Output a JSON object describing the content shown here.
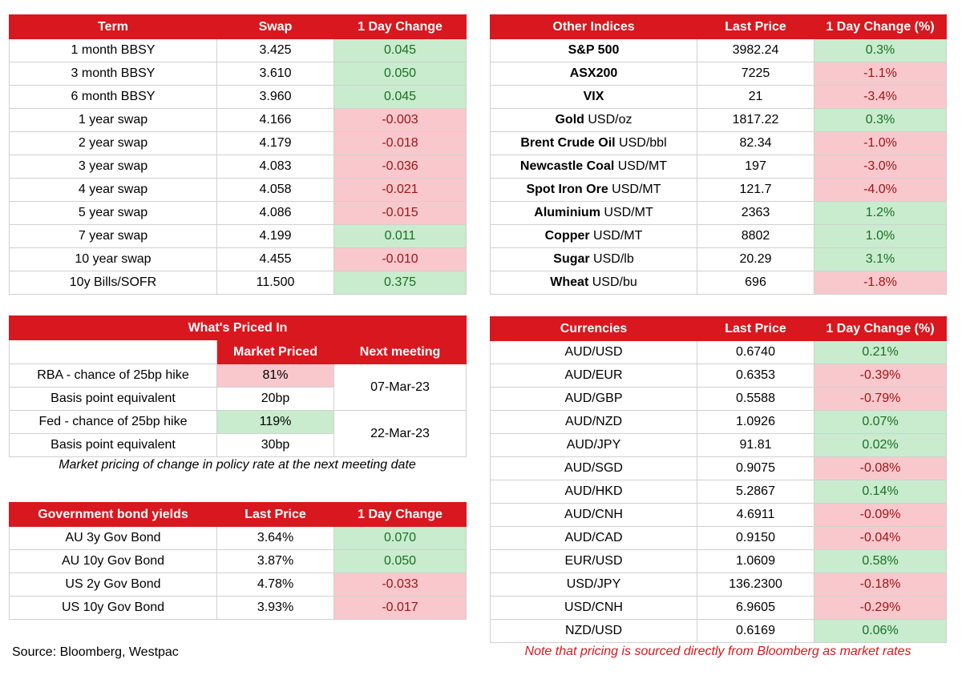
{
  "swaps": {
    "headers": [
      "Term",
      "Swap",
      "1 Day Change"
    ],
    "rows": [
      {
        "term": "1 month BBSY",
        "swap": "3.425",
        "change": "0.045",
        "dir": "pos"
      },
      {
        "term": "3 month BBSY",
        "swap": "3.610",
        "change": "0.050",
        "dir": "pos"
      },
      {
        "term": "6 month BBSY",
        "swap": "3.960",
        "change": "0.045",
        "dir": "pos"
      },
      {
        "term": "1 year swap",
        "swap": "4.166",
        "change": "-0.003",
        "dir": "neg"
      },
      {
        "term": "2 year swap",
        "swap": "4.179",
        "change": "-0.018",
        "dir": "neg"
      },
      {
        "term": "3 year swap",
        "swap": "4.083",
        "change": "-0.036",
        "dir": "neg"
      },
      {
        "term": "4 year swap",
        "swap": "4.058",
        "change": "-0.021",
        "dir": "neg"
      },
      {
        "term": "5 year swap",
        "swap": "4.086",
        "change": "-0.015",
        "dir": "neg"
      },
      {
        "term": "7 year swap",
        "swap": "4.199",
        "change": "0.011",
        "dir": "pos"
      },
      {
        "term": "10 year swap",
        "swap": "4.455",
        "change": "-0.010",
        "dir": "neg"
      },
      {
        "term": "10y Bills/SOFR",
        "swap": "11.500",
        "change": "0.375",
        "dir": "pos"
      }
    ]
  },
  "indices": {
    "headers": [
      "Other Indices",
      "Last Price",
      "1 Day Change (%)"
    ],
    "rows": [
      {
        "name": "S&P 500",
        "unit": "",
        "price": "3982.24",
        "change": "0.3%",
        "dir": "pos"
      },
      {
        "name": "ASX200",
        "unit": "",
        "price": "7225",
        "change": "-1.1%",
        "dir": "neg"
      },
      {
        "name": "VIX",
        "unit": "",
        "price": "21",
        "change": "-3.4%",
        "dir": "neg"
      },
      {
        "name": "Gold",
        "unit": " USD/oz",
        "price": "1817.22",
        "change": "0.3%",
        "dir": "pos"
      },
      {
        "name": "Brent Crude Oil",
        "unit": " USD/bbl",
        "price": "82.34",
        "change": "-1.0%",
        "dir": "neg"
      },
      {
        "name": "Newcastle Coal",
        "unit": " USD/MT",
        "price": "197",
        "change": "-3.0%",
        "dir": "neg"
      },
      {
        "name": "Spot Iron Ore",
        "unit": " USD/MT",
        "price": "121.7",
        "change": "-4.0%",
        "dir": "neg"
      },
      {
        "name": "Aluminium",
        "unit": " USD/MT",
        "price": "2363",
        "change": "1.2%",
        "dir": "pos"
      },
      {
        "name": "Copper",
        "unit": " USD/MT",
        "price": "8802",
        "change": "1.0%",
        "dir": "pos"
      },
      {
        "name": "Sugar",
        "unit": " USD/lb",
        "price": "20.29",
        "change": "3.1%",
        "dir": "pos"
      },
      {
        "name": "Wheat",
        "unit": " USD/bu",
        "price": "696",
        "change": "-1.8%",
        "dir": "neg"
      }
    ]
  },
  "priced": {
    "title": "What's Priced In",
    "headers": [
      "Market Priced",
      "Next meeting"
    ],
    "rows": [
      {
        "label": "RBA - chance of 25bp hike",
        "value": "81%",
        "dir": "neg"
      },
      {
        "label": "Basis point equivalent",
        "value": "20bp",
        "dir": ""
      },
      {
        "label": "Fed - chance of 25bp hike",
        "value": "119%",
        "dir": "pos"
      },
      {
        "label": "Basis point equivalent",
        "value": "30bp",
        "dir": ""
      }
    ],
    "meetings": [
      "07-Mar-23",
      "22-Mar-23"
    ],
    "note": "Market pricing of change in policy rate at the next meeting date"
  },
  "bonds": {
    "headers": [
      "Government bond yields",
      "Last Price",
      "1 Day Change"
    ],
    "rows": [
      {
        "name": "AU 3y Gov Bond",
        "price": "3.64%",
        "change": "0.070",
        "dir": "pos"
      },
      {
        "name": "AU 10y Gov Bond",
        "price": "3.87%",
        "change": "0.050",
        "dir": "pos"
      },
      {
        "name": "US 2y Gov Bond",
        "price": "4.78%",
        "change": "-0.033",
        "dir": "neg"
      },
      {
        "name": "US 10y Gov Bond",
        "price": "3.93%",
        "change": "-0.017",
        "dir": "neg"
      }
    ]
  },
  "currencies": {
    "headers": [
      "Currencies",
      "Last Price",
      "1 Day Change (%)"
    ],
    "rows": [
      {
        "pair": "AUD/USD",
        "price": "0.6740",
        "change": "0.21%",
        "dir": "pos"
      },
      {
        "pair": "AUD/EUR",
        "price": "0.6353",
        "change": "-0.39%",
        "dir": "neg"
      },
      {
        "pair": "AUD/GBP",
        "price": "0.5588",
        "change": "-0.79%",
        "dir": "neg"
      },
      {
        "pair": "AUD/NZD",
        "price": "1.0926",
        "change": "0.07%",
        "dir": "pos"
      },
      {
        "pair": "AUD/JPY",
        "price": "91.81",
        "change": "0.02%",
        "dir": "pos"
      },
      {
        "pair": "AUD/SGD",
        "price": "0.9075",
        "change": "-0.08%",
        "dir": "neg"
      },
      {
        "pair": "AUD/HKD",
        "price": "5.2867",
        "change": "0.14%",
        "dir": "pos"
      },
      {
        "pair": "AUD/CNH",
        "price": "4.6911",
        "change": "-0.09%",
        "dir": "neg"
      },
      {
        "pair": "AUD/CAD",
        "price": "0.9150",
        "change": "-0.04%",
        "dir": "neg"
      },
      {
        "pair": "EUR/USD",
        "price": "1.0609",
        "change": "0.58%",
        "dir": "pos"
      },
      {
        "pair": "USD/JPY",
        "price": "136.2300",
        "change": "-0.18%",
        "dir": "neg"
      },
      {
        "pair": "USD/CNH",
        "price": "6.9605",
        "change": "-0.29%",
        "dir": "neg"
      },
      {
        "pair": "NZD/USD",
        "price": "0.6169",
        "change": "0.06%",
        "dir": "pos"
      }
    ]
  },
  "footer": {
    "source": "Source: Bloomberg, Westpac",
    "note": "Note that pricing is sourced directly from Bloomberg as market rates"
  }
}
